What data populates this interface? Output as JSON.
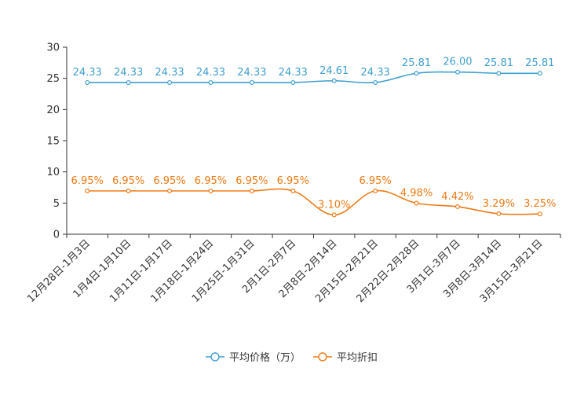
{
  "chart_data": {
    "type": "line",
    "categories": [
      "12月28日-1月3日",
      "1月4日-1月10日",
      "1月11日-1月17日",
      "1月18日-1月24日",
      "1月25日-1月31日",
      "2月1日-2月7日",
      "2月8日-2月14日",
      "2月15日-2月21日",
      "2月22日-2月28日",
      "3月1日-3月7日",
      "3月8日-3月14日",
      "3月15日-3月21日"
    ],
    "series": [
      {
        "name": "平均价格（万）",
        "color": "#3e9fd0",
        "values": [
          24.33,
          24.33,
          24.33,
          24.33,
          24.33,
          24.33,
          24.61,
          24.33,
          25.81,
          26.0,
          25.81,
          25.81
        ],
        "labels": [
          "24.33",
          "24.33",
          "24.33",
          "24.33",
          "24.33",
          "24.33",
          "24.61",
          "24.33",
          "25.81",
          "26.00",
          "25.81",
          "25.81"
        ]
      },
      {
        "name": "平均折扣",
        "color": "#f07a15",
        "values": [
          6.95,
          6.95,
          6.95,
          6.95,
          6.95,
          6.95,
          3.1,
          6.95,
          4.98,
          4.42,
          3.29,
          3.25
        ],
        "labels": [
          "6.95%",
          "6.95%",
          "6.95%",
          "6.95%",
          "6.95%",
          "6.95%",
          "3.10%",
          "6.95%",
          "4.98%",
          "4.42%",
          "3.29%",
          "3.25%"
        ]
      }
    ],
    "ylim": [
      0,
      30
    ],
    "yticks": [
      0,
      5,
      10,
      15,
      20,
      25,
      30
    ],
    "title": "",
    "xlabel": "",
    "ylabel": "",
    "legend_position": "bottom-center"
  }
}
